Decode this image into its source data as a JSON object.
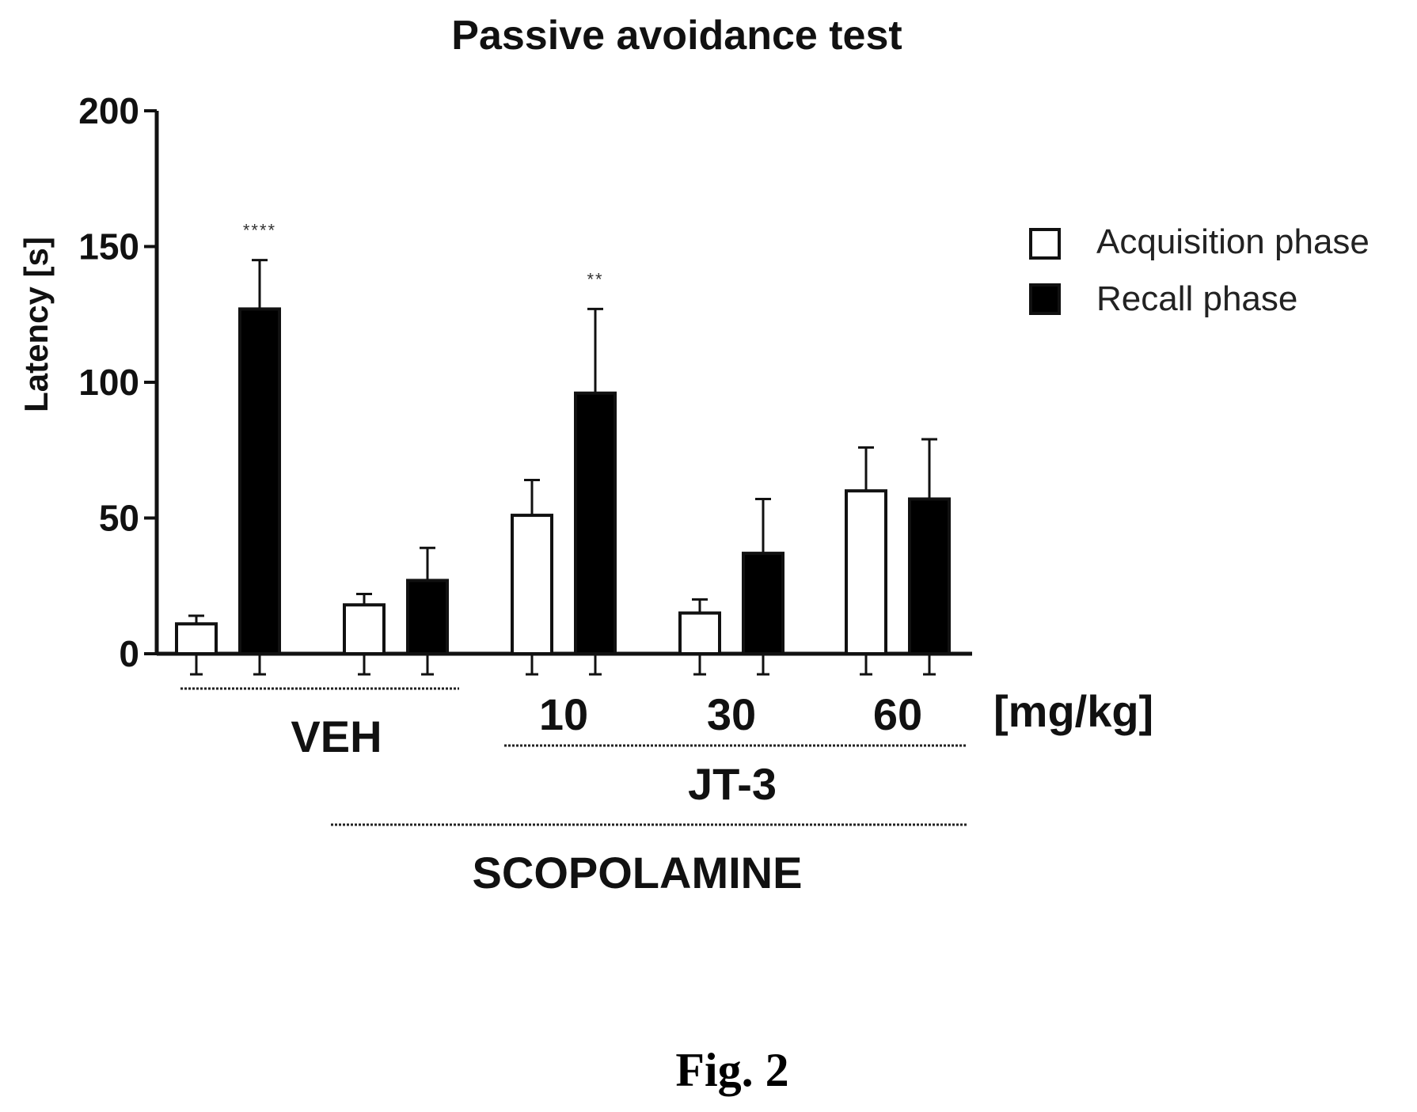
{
  "chart_data": {
    "type": "bar",
    "title": "Passive avoidance test",
    "ylabel": "Latency [s]",
    "ylim": [
      0,
      200
    ],
    "yticks": [
      0,
      50,
      100,
      150,
      200
    ],
    "grid": false,
    "legend_position": "right",
    "series": [
      {
        "name": "Acquisition phase",
        "color": "#ffffff",
        "values": [
          11,
          18,
          51,
          15,
          60
        ],
        "errors": [
          3,
          4,
          13,
          5,
          16
        ]
      },
      {
        "name": "Recall phase",
        "color": "#000000",
        "values": [
          127,
          27,
          96,
          37,
          57
        ],
        "errors": [
          18,
          12,
          31,
          20,
          22
        ]
      }
    ],
    "significance": [
      {
        "group": 0,
        "series": 1,
        "label": "****"
      },
      {
        "group": 2,
        "series": 1,
        "label": "**"
      }
    ],
    "dose_labels": [
      {
        "group": 2,
        "label": "10"
      },
      {
        "group": 3,
        "label": "30"
      },
      {
        "group": 4,
        "label": "60"
      }
    ],
    "dose_unit": "[mg/kg]",
    "group_brackets": [
      {
        "label": "VEH",
        "from_group": 0,
        "to_group": 1,
        "row": 0
      },
      {
        "label": "JT-3",
        "from_group": 2,
        "to_group": 4,
        "row": 0
      },
      {
        "label": "SCOPOLAMINE",
        "from_group": 1,
        "to_group": 4,
        "row": 1
      }
    ]
  },
  "figure_caption": "Fig. 2"
}
